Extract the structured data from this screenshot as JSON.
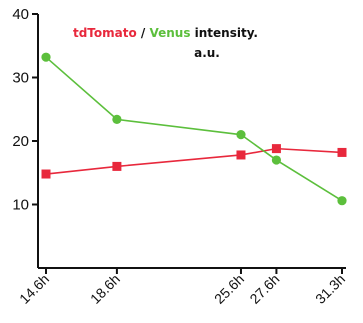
{
  "chart_data": {
    "type": "line",
    "title_parts": [
      {
        "text": "tdTomato",
        "color": "#e8283c"
      },
      {
        "text": " / ",
        "color": "#111111"
      },
      {
        "text": "Venus",
        "color": "#5cbf3c"
      },
      {
        "text": " intensity.",
        "color": "#111111"
      }
    ],
    "subtitle": "a.u.",
    "x": [
      "14.6h",
      "18.6h",
      "25.6h",
      "27.6h",
      "31.3h"
    ],
    "x_values": [
      14.6,
      18.6,
      25.6,
      27.6,
      31.3
    ],
    "xlim": [
      14.6,
      31.3
    ],
    "ylim": [
      0,
      40
    ],
    "yticks": [
      10,
      20,
      30,
      40
    ],
    "grid": false,
    "series": [
      {
        "name": "tdTomato",
        "color": "#e8283c",
        "marker": "square",
        "x": [
          14.6,
          18.6,
          25.6,
          27.6,
          31.3
        ],
        "y": [
          14.8,
          16.0,
          17.8,
          18.8,
          18.2
        ]
      },
      {
        "name": "Venus",
        "color": "#5cbf3c",
        "marker": "circle",
        "x": [
          14.6,
          18.6,
          25.6,
          27.6,
          31.3
        ],
        "y": [
          33.2,
          23.4,
          21.0,
          17.0,
          10.6
        ]
      }
    ]
  }
}
